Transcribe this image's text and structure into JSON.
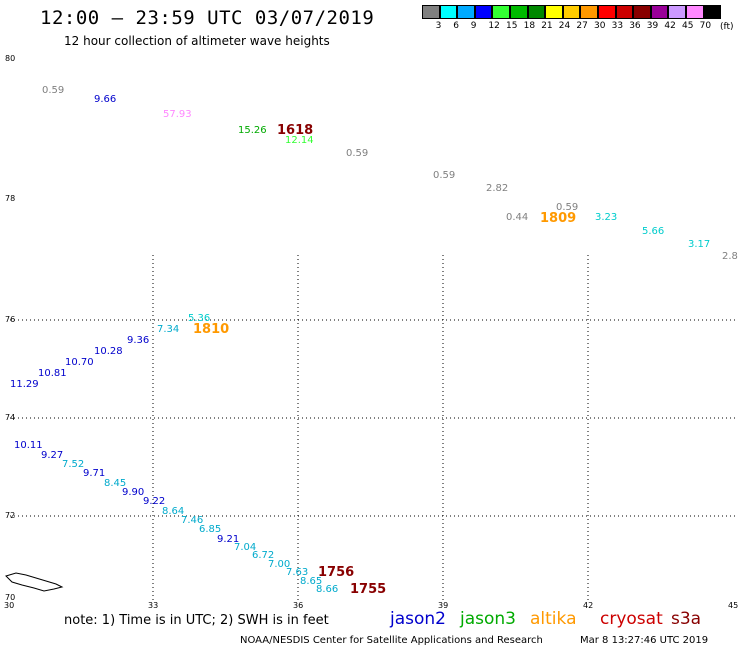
{
  "header": {
    "title": "12:00 – 23:59 UTC 03/07/2019",
    "subtitle": "12 hour collection of altimeter wave heights"
  },
  "scale": {
    "colors": [
      "#808080",
      "#00ffff",
      "#00aaff",
      "#0000ff",
      "#33ff33",
      "#00bb00",
      "#008800",
      "#ffff00",
      "#ffcc00",
      "#ff9900",
      "#ff0000",
      "#cc0000",
      "#880000",
      "#990099",
      "#cc99ff",
      "#ff88ff",
      "#000000"
    ],
    "labels": [
      "3",
      "6",
      "9",
      "12",
      "15",
      "18",
      "21",
      "24",
      "27",
      "30",
      "33",
      "36",
      "39",
      "42",
      "45",
      "70"
    ],
    "unit": "(ft)"
  },
  "axes": {
    "lat_ticks": [
      "80",
      "78",
      "76",
      "74",
      "72",
      "70"
    ],
    "lon_ticks": [
      "30",
      "33",
      "36",
      "39",
      "42",
      "45"
    ]
  },
  "observations": [
    {
      "t": "0.59",
      "c": "#808080"
    },
    {
      "t": "9.66",
      "c": "#0000cc"
    },
    {
      "t": "57.93",
      "c": "#ff88ff"
    },
    {
      "t": "15.26",
      "c": "#00aa00"
    },
    {
      "t": "12.14",
      "c": "#33ff33"
    },
    {
      "t": "0.59",
      "c": "#808080"
    },
    {
      "t": "0.59",
      "c": "#808080"
    },
    {
      "t": "2.82",
      "c": "#808080"
    },
    {
      "t": "0.59",
      "c": "#808080"
    },
    {
      "t": "0.44",
      "c": "#808080"
    },
    {
      "t": "3.23",
      "c": "#00cccc"
    },
    {
      "t": "5.66",
      "c": "#00cccc"
    },
    {
      "t": "3.17",
      "c": "#00cccc"
    },
    {
      "t": "2.8",
      "c": "#808080"
    },
    {
      "t": "5.36",
      "c": "#00cccc"
    },
    {
      "t": "7.34",
      "c": "#00aacc"
    },
    {
      "t": "9.36",
      "c": "#0000cc"
    },
    {
      "t": "10.28",
      "c": "#0000cc"
    },
    {
      "t": "10.70",
      "c": "#0000cc"
    },
    {
      "t": "10.81",
      "c": "#0000cc"
    },
    {
      "t": "11.29",
      "c": "#0000cc"
    },
    {
      "t": "10.11",
      "c": "#0000cc"
    },
    {
      "t": "9.27",
      "c": "#0000cc"
    },
    {
      "t": "7.52",
      "c": "#00aacc"
    },
    {
      "t": "9.71",
      "c": "#0000cc"
    },
    {
      "t": "8.45",
      "c": "#00aacc"
    },
    {
      "t": "9.90",
      "c": "#0000cc"
    },
    {
      "t": "9.22",
      "c": "#0000cc"
    },
    {
      "t": "8.64",
      "c": "#00aacc"
    },
    {
      "t": "7.46",
      "c": "#00aacc"
    },
    {
      "t": "6.85",
      "c": "#00aacc"
    },
    {
      "t": "9.21",
      "c": "#0000cc"
    },
    {
      "t": "7.04",
      "c": "#00aacc"
    },
    {
      "t": "6.72",
      "c": "#00aacc"
    },
    {
      "t": "7.00",
      "c": "#00aacc"
    },
    {
      "t": "7.63",
      "c": "#00aacc"
    },
    {
      "t": "8.65",
      "c": "#00aacc"
    },
    {
      "t": "8.66",
      "c": "#00aacc"
    }
  ],
  "passes": [
    {
      "t": "1618",
      "c": "#880000"
    },
    {
      "t": "1809",
      "c": "#ff9900"
    },
    {
      "t": "1810",
      "c": "#ff9900"
    },
    {
      "t": "1756",
      "c": "#880000"
    },
    {
      "t": "1755",
      "c": "#880000"
    }
  ],
  "footer": {
    "note": "note: 1) Time is in UTC; 2) SWH is in feet",
    "satellites": [
      {
        "name": "jason2",
        "color": "#0000cc"
      },
      {
        "name": "jason3",
        "color": "#00aa00"
      },
      {
        "name": "altika",
        "color": "#ff9900"
      },
      {
        "name": "cryosat",
        "color": "#cc0000"
      },
      {
        "name": "s3a",
        "color": "#880000"
      }
    ],
    "credit": "NOAA/NESDIS Center for Satellite Applications and Research",
    "timestamp": "Mar  8 13:27:46 UTC 2019"
  }
}
